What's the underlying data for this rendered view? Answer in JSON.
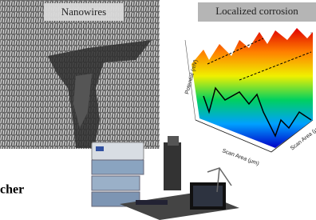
{
  "panels": {
    "nanowires": {
      "label": "Nanowires"
    },
    "corrosion": {
      "label": "Localized corrosion",
      "y_axis_label": "Potential (mV)",
      "x_axis_label": "Scan Area (μm)",
      "depth_axis_label": "Scan Area (μ"
    }
  },
  "caption": "cher"
}
